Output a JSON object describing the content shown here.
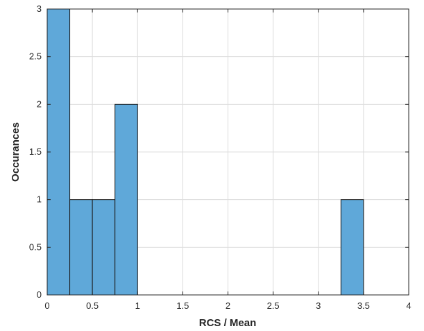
{
  "chart_data": {
    "type": "bar",
    "title": "",
    "xlabel": "RCS / Mean",
    "ylabel": "Occurances",
    "xlim": [
      0,
      4
    ],
    "ylim": [
      0,
      3
    ],
    "xticks": [
      0,
      0.5,
      1,
      1.5,
      2,
      2.5,
      3,
      3.5,
      4
    ],
    "yticks": [
      0,
      0.5,
      1,
      1.5,
      2,
      2.5,
      3
    ],
    "xtick_labels": [
      "0",
      "0.5",
      "1",
      "1.5",
      "2",
      "2.5",
      "3",
      "3.5",
      "4"
    ],
    "ytick_labels": [
      "0",
      "0.5",
      "1",
      "1.5",
      "2",
      "2.5",
      "3"
    ],
    "grid": true,
    "bins": [
      {
        "x0": 0,
        "x1": 0.25,
        "count": 3
      },
      {
        "x0": 0.25,
        "x1": 0.5,
        "count": 1
      },
      {
        "x0": 0.5,
        "x1": 0.75,
        "count": 1
      },
      {
        "x0": 0.75,
        "x1": 1.0,
        "count": 2
      },
      {
        "x0": 3.25,
        "x1": 3.5,
        "count": 1
      }
    ],
    "colors": {
      "bar_fill": "#5fa8d9",
      "bar_edge": "#1a1a1a",
      "grid": "#dcdcdc",
      "axis": "#262626"
    }
  }
}
